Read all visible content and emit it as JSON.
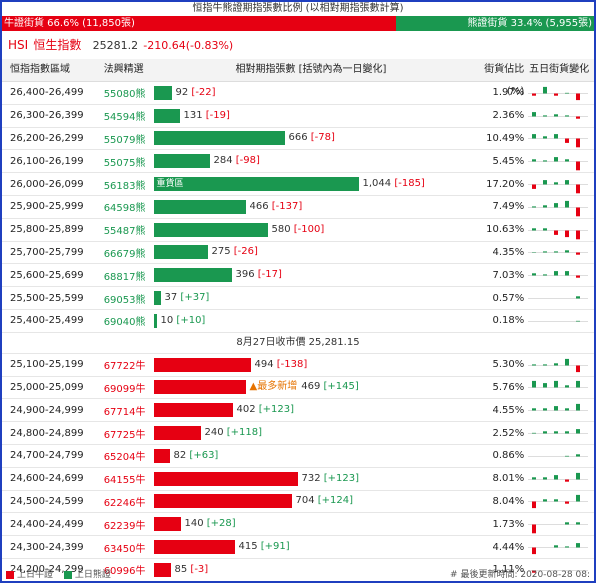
{
  "ratio": {
    "title": "恒指牛熊證期指張數比例 (以相對期指張數計算)",
    "bull_label": "牛證街貨 66.6% (11,850張)",
    "bear_label": "熊證街貨 33.4% (5,955張)",
    "bull_percent": 66.6,
    "bull_color": "#e60012",
    "bear_color": "#1a9850"
  },
  "index": {
    "code": "HSI",
    "name": "恒生指數",
    "value": "25281.2",
    "change": "-210.64(-0.83%)"
  },
  "table": {
    "headers": {
      "range": "恒指指數區域",
      "featured": "法興精選",
      "contracts": "相對期指張數 [括號內為一日變化]",
      "pct": "街貨佔比(%)",
      "five_day": "五日街貨變化"
    },
    "max_contracts": 1044,
    "bear_rows": [
      {
        "range": "26,400-26,499",
        "code": "55080熊",
        "value": 92,
        "value_text": "92",
        "change": "[-22]",
        "pct": "1.97%",
        "five_day": [
          -1,
          3,
          -1,
          0.3,
          -3
        ]
      },
      {
        "range": "26,300-26,399",
        "code": "54594熊",
        "value": 131,
        "value_text": "131",
        "change": "[-19]",
        "pct": "2.36%",
        "five_day": [
          2,
          0.5,
          1,
          0.5,
          -1
        ]
      },
      {
        "range": "26,200-26,299",
        "code": "55079熊",
        "value": 666,
        "value_text": "666",
        "change": "[-78]",
        "pct": "10.49%",
        "five_day": [
          2,
          1,
          2,
          -2,
          -4
        ]
      },
      {
        "range": "26,100-26,199",
        "code": "55075熊",
        "value": 284,
        "value_text": "284",
        "change": "[-98]",
        "pct": "5.45%",
        "five_day": [
          1,
          0.5,
          2,
          1,
          -4
        ]
      },
      {
        "range": "26,000-26,099",
        "code": "56183熊",
        "value": 1044,
        "value_text": "1,044",
        "change": "[-185]",
        "pct": "17.20%",
        "five_day": [
          -2,
          2,
          1,
          2,
          -4
        ],
        "in_bar_label": "重貨區"
      },
      {
        "range": "25,900-25,999",
        "code": "64598熊",
        "value": 466,
        "value_text": "466",
        "change": "[-137]",
        "pct": "7.49%",
        "five_day": [
          0.5,
          1,
          2,
          3,
          -4
        ]
      },
      {
        "range": "25,800-25,899",
        "code": "55487熊",
        "value": 580,
        "value_text": "580",
        "change": "[-100]",
        "pct": "10.63%",
        "five_day": [
          1,
          1,
          -2,
          -3,
          -4
        ]
      },
      {
        "range": "25,700-25,799",
        "code": "66679熊",
        "value": 275,
        "value_text": "275",
        "change": "[-26]",
        "pct": "4.35%",
        "five_day": [
          0.2,
          0.5,
          0.5,
          1,
          -1
        ]
      },
      {
        "range": "25,600-25,699",
        "code": "68817熊",
        "value": 396,
        "value_text": "396",
        "change": "[-17]",
        "pct": "7.03%",
        "five_day": [
          1,
          0.5,
          2,
          2,
          -1
        ]
      },
      {
        "range": "25,500-25,599",
        "code": "69053熊",
        "value": 37,
        "value_text": "37",
        "change": "[+37]",
        "pct": "0.57%",
        "five_day": [
          0,
          0,
          0,
          0,
          1
        ]
      },
      {
        "range": "25,400-25,499",
        "code": "69040熊",
        "value": 10,
        "value_text": "10",
        "change": "[+10]",
        "pct": "0.18%",
        "five_day": [
          0,
          0,
          0,
          0,
          0.3
        ]
      }
    ],
    "close_text": "8月27日收市價 25,281.15",
    "bull_rows": [
      {
        "range": "25,100-25,199",
        "code": "67722牛",
        "value": 494,
        "value_text": "494",
        "change": "[-138]",
        "pct": "5.30%",
        "five_day": [
          0.5,
          0.5,
          1,
          3,
          -3
        ]
      },
      {
        "range": "25,000-25,099",
        "code": "69099牛",
        "value": 469,
        "value_text": "469",
        "change": "[+145]",
        "pct": "5.76%",
        "five_day": [
          3,
          2,
          3,
          1,
          3
        ],
        "tag": "▲最多新增"
      },
      {
        "range": "24,900-24,999",
        "code": "67714牛",
        "value": 402,
        "value_text": "402",
        "change": "[+123]",
        "pct": "4.55%",
        "five_day": [
          1,
          1,
          2,
          1,
          3
        ]
      },
      {
        "range": "24,800-24,899",
        "code": "67725牛",
        "value": 240,
        "value_text": "240",
        "change": "[+118]",
        "pct": "2.52%",
        "five_day": [
          0.3,
          1,
          1,
          1,
          2
        ]
      },
      {
        "range": "24,700-24,799",
        "code": "65204牛",
        "value": 82,
        "value_text": "82",
        "change": "[+63]",
        "pct": "0.86%",
        "five_day": [
          0,
          0,
          0,
          0.3,
          1
        ]
      },
      {
        "range": "24,600-24,699",
        "code": "64155牛",
        "value": 732,
        "value_text": "732",
        "change": "[+123]",
        "pct": "8.01%",
        "five_day": [
          1,
          1,
          2,
          -1,
          3
        ]
      },
      {
        "range": "24,500-24,599",
        "code": "62246牛",
        "value": 704,
        "value_text": "704",
        "change": "[+124]",
        "pct": "8.04%",
        "five_day": [
          -3,
          1,
          1,
          -1,
          3
        ]
      },
      {
        "range": "24,400-24,499",
        "code": "62239牛",
        "value": 140,
        "value_text": "140",
        "change": "[+28]",
        "pct": "1.73%",
        "five_day": [
          -4,
          0,
          0,
          1,
          1
        ]
      },
      {
        "range": "24,300-24,399",
        "code": "63450牛",
        "value": 415,
        "value_text": "415",
        "change": "[+91]",
        "pct": "4.44%",
        "five_day": [
          -3,
          0,
          1,
          0.5,
          2
        ]
      },
      {
        "range": "24,200-24,299",
        "code": "60996牛",
        "value": 85,
        "value_text": "85",
        "change": "[-3]",
        "pct": "1.11%",
        "five_day": [
          -1,
          0,
          0,
          0,
          0
        ]
      }
    ]
  },
  "footer": {
    "legend_bull": "上日牛證",
    "legend_bear": "上日熊證",
    "updated_icon": "hash-icon",
    "updated": "# 最後更新時間: 2020-08-28 08:"
  }
}
